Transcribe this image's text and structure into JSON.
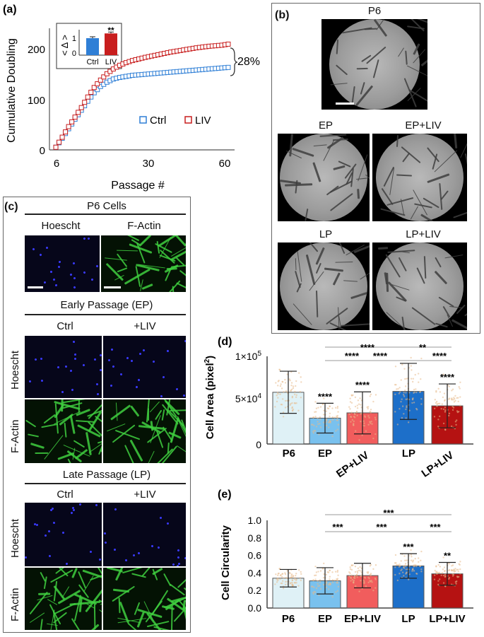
{
  "panel_a": {
    "letter": "(a)",
    "ylabel": "Cumulative Doubling",
    "xlabel": "Passage #",
    "xticks": [
      "6",
      "30",
      "60"
    ],
    "yticks": [
      "0",
      "100",
      "200"
    ],
    "legend": [
      "Ctrl",
      "LIV"
    ],
    "percent_note": "28%",
    "inset": {
      "ylabel": "< Δ >",
      "yticks": [
        "0",
        "1"
      ],
      "categories": [
        "Ctrl",
        "LIV"
      ],
      "sig": "**"
    }
  },
  "panel_b": {
    "letter": "(b)",
    "labels": [
      "P6",
      "EP",
      "EP+LIV",
      "LP",
      "LP+LIV"
    ]
  },
  "panel_c": {
    "letter": "(c)",
    "p6_title": "P6 Cells",
    "p6_cols": [
      "Hoescht",
      "F-Actin"
    ],
    "ep_title": "Early Passage (EP)",
    "lp_title": "Late Passage (LP)",
    "cols": [
      "Ctrl",
      "+LIV"
    ],
    "rows": [
      "Hoescht",
      "F-Actin"
    ]
  },
  "panel_d": {
    "letter": "(d)",
    "ylabel_main": "Cell Area (pixel",
    "ylabel_sup": "2",
    "ylabel_end": ")",
    "ytick_top": "1×10",
    "ytick_top_sup": "5",
    "ytick_mid": "5×10",
    "ytick_mid_sup": "4",
    "ytick_zero": "0",
    "categories": [
      "P6",
      "EP",
      "EP+LIV",
      "LP",
      "LP+LIV"
    ],
    "bar_sigs": [
      "",
      "****",
      "****",
      "",
      "****"
    ],
    "bracket_sigs": [
      "****",
      "**",
      "****",
      "****",
      "****"
    ]
  },
  "panel_e": {
    "letter": "(e)",
    "ylabel": "Cell Circularity",
    "yticks": [
      "0.0",
      "0.2",
      "0.4",
      "0.6",
      "0.8",
      "1.0"
    ],
    "categories": [
      "P6",
      "EP",
      "EP+LIV",
      "LP",
      "LP+LIV"
    ],
    "bar_sigs": [
      "",
      "",
      "",
      "***",
      "**"
    ],
    "bracket_sigs": [
      "***",
      "***",
      "***",
      "***"
    ]
  },
  "colors": {
    "ctrl": "#2f7fd6",
    "liv": "#c81e1e",
    "p6": "#dff1f6",
    "ep": "#79c1ee",
    "ep_liv": "#f15d5d",
    "lp": "#1d6fc9",
    "lp_liv": "#b51212"
  },
  "chart_data": [
    {
      "type": "line",
      "title": "",
      "xlabel": "Passage #",
      "ylabel": "Cumulative Doubling",
      "xlim": [
        4,
        62
      ],
      "ylim": [
        0,
        230
      ],
      "series": [
        {
          "name": "Ctrl",
          "x": [
            6,
            8,
            10,
            12,
            14,
            16,
            18,
            20,
            22,
            24,
            26,
            28,
            30,
            34,
            38,
            42,
            46,
            50,
            54,
            58,
            60
          ],
          "y": [
            5,
            22,
            40,
            58,
            75,
            92,
            108,
            120,
            128,
            134,
            137,
            139,
            141,
            143,
            145,
            147,
            149,
            151,
            153,
            155,
            156
          ]
        },
        {
          "name": "LIV",
          "x": [
            6,
            8,
            10,
            12,
            14,
            16,
            18,
            20,
            22,
            24,
            26,
            28,
            30,
            34,
            38,
            42,
            46,
            50,
            54,
            58,
            60
          ],
          "y": [
            5,
            24,
            44,
            62,
            80,
            100,
            118,
            132,
            144,
            153,
            160,
            165,
            169,
            175,
            180,
            185,
            189,
            193,
            196,
            198,
            200
          ]
        }
      ],
      "legend": "bottom-right",
      "annotations": [
        "28%"
      ]
    },
    {
      "type": "bar",
      "title": "",
      "ylabel": "< Δ >",
      "categories": [
        "Ctrl",
        "LIV"
      ],
      "values": [
        1.0,
        1.28
      ],
      "ylim": [
        0,
        1.5
      ],
      "annotations": [
        "**"
      ]
    },
    {
      "type": "bar",
      "title": "",
      "ylabel": "Cell Area (pixel²)",
      "categories": [
        "P6",
        "EP",
        "EP+LIV",
        "LP",
        "LP+LIV"
      ],
      "values": [
        59000,
        29500,
        35500,
        60000,
        43500
      ],
      "errors": [
        24000,
        17000,
        24000,
        32000,
        25000
      ],
      "ylim": [
        0,
        100000
      ],
      "significance": [
        "",
        "****",
        "****",
        "",
        "****"
      ]
    },
    {
      "type": "bar",
      "title": "",
      "ylabel": "Cell Circularity",
      "categories": [
        "P6",
        "EP",
        "EP+LIV",
        "LP",
        "LP+LIV"
      ],
      "values": [
        0.34,
        0.31,
        0.37,
        0.48,
        0.39
      ],
      "errors": [
        0.1,
        0.15,
        0.14,
        0.14,
        0.13
      ],
      "ylim": [
        0,
        1.0
      ],
      "significance": [
        "",
        "",
        "",
        "***",
        "**"
      ]
    }
  ]
}
